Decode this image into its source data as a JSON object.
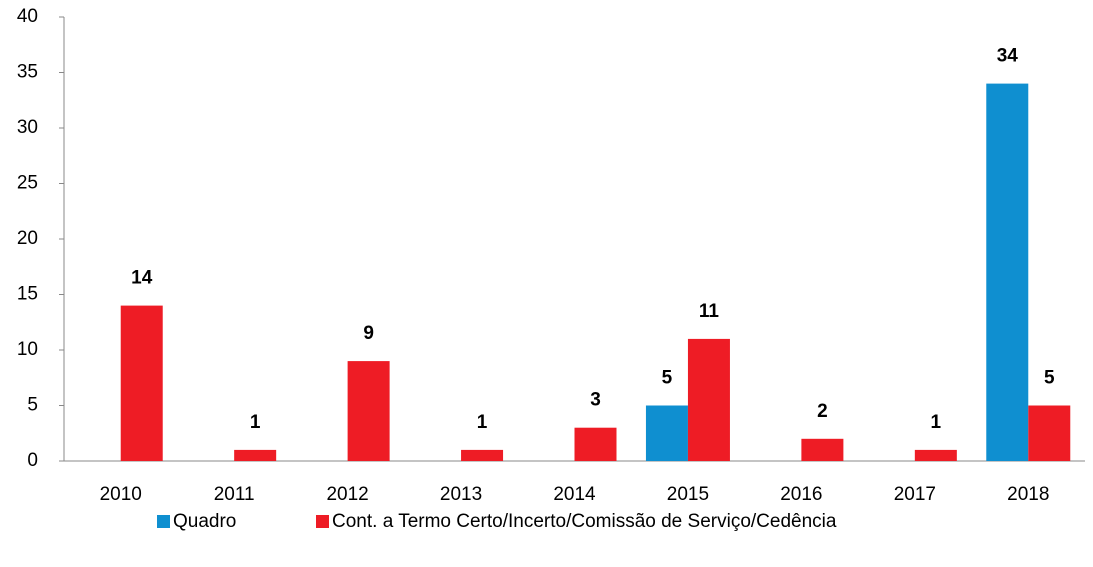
{
  "chart_data": {
    "type": "bar",
    "categories": [
      "2010",
      "2011",
      "2012",
      "2013",
      "2014",
      "2015",
      "2016",
      "2017",
      "2018"
    ],
    "series": [
      {
        "name": "Quadro",
        "color": "#0f8fd0",
        "values": [
          null,
          null,
          null,
          null,
          null,
          5,
          null,
          null,
          34
        ]
      },
      {
        "name": "Cont. a Termo Certo/Incerto/Comissão de Serviço/Cedência",
        "color": "#ee1c25",
        "values": [
          14,
          1,
          9,
          1,
          3,
          11,
          2,
          1,
          5
        ]
      }
    ],
    "ylim": [
      0,
      40
    ],
    "yticks": [
      0,
      5,
      10,
      15,
      20,
      25,
      30,
      35,
      40
    ],
    "grid": false,
    "legend": "bottom"
  }
}
